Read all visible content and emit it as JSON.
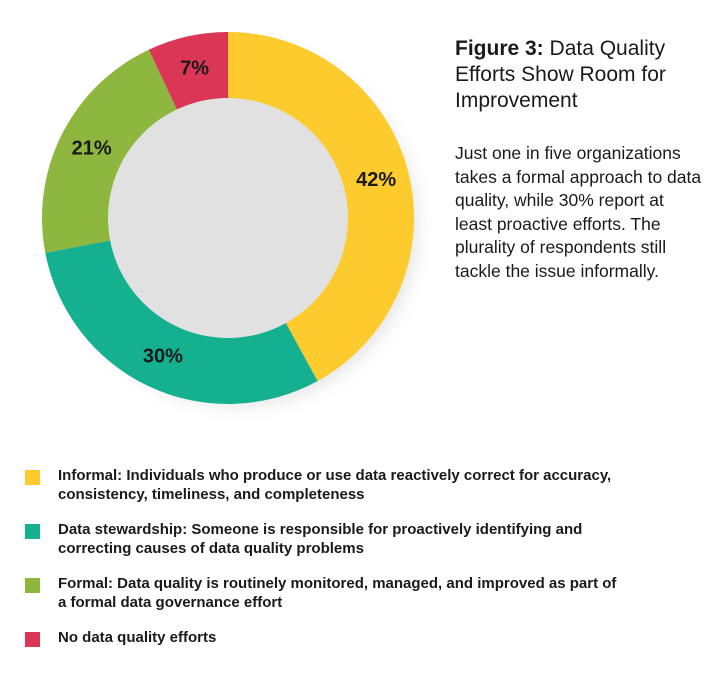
{
  "figure": {
    "number": "Figure 3:",
    "title": "Data Quality Efforts Show Room for Improvement",
    "description": "Just one in five organizations takes a formal approach to data quality, while 30% report at least proactive efforts. The plurality of respondents still tackle the issue informally."
  },
  "chart_data": {
    "type": "pie",
    "donut": true,
    "start": "top, clockwise",
    "slices": [
      {
        "label": "Informal: Individuals who produce or use data reactively correct for accuracy, consistency, timeliness, and  completeness",
        "value": 42,
        "display": "42%",
        "color": "#FDCB2E"
      },
      {
        "label": "Data stewardship: Someone is responsible for proactively identifying and correcting causes of data quality problems",
        "value": 30,
        "display": "30%",
        "color": "#14B08F"
      },
      {
        "label": "Formal: Data quality is routinely monitored, managed, and improved as part of a formal data governance effort",
        "value": 21,
        "display": "21%",
        "color": "#8DB73E"
      },
      {
        "label": "No data quality efforts",
        "value": 7,
        "display": "7%",
        "color": "#DC3656"
      }
    ]
  },
  "legend": {
    "items": [
      {
        "text": "Informal: Individuals who produce or use data reactively correct for accuracy, consistency, timeliness, and  completeness",
        "color": "#FDCB2E"
      },
      {
        "text": "Data stewardship: Someone is responsible for proactively identifying and correcting causes of data quality problems",
        "color": "#14B08F"
      },
      {
        "text": "Formal: Data quality is routinely monitored, managed, and improved as part of a formal data governance effort",
        "color": "#8DB73E"
      },
      {
        "text": "No data quality efforts",
        "color": "#DC3656"
      }
    ]
  }
}
